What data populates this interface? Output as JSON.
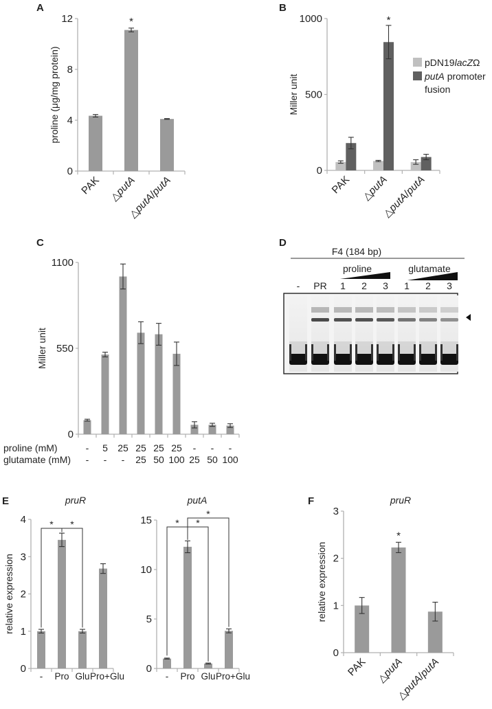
{
  "panels": {
    "A": {
      "letter": "A"
    },
    "B": {
      "letter": "B"
    },
    "C": {
      "letter": "C"
    },
    "D": {
      "letter": "D"
    },
    "E": {
      "letter": "E"
    },
    "F": {
      "letter": "F"
    }
  },
  "gel": {
    "title": "F4 (184 bp)",
    "group_labels": [
      "proline",
      "glutamate"
    ],
    "lane_labels": [
      "-",
      "PR",
      "1",
      "2",
      "3",
      "1",
      "2",
      "3"
    ],
    "shift_band_marker": "arrowhead",
    "shift_band_intensity": [
      0,
      0.9,
      0.85,
      0.85,
      0.8,
      0.6,
      0.5,
      0.4
    ]
  },
  "chart_data": [
    {
      "id": "A",
      "type": "bar",
      "title": "",
      "xlabel": "",
      "ylabel": "proline (μg/mg protein)",
      "categories": [
        "PAK",
        "ΔputA",
        "ΔputA/putA"
      ],
      "values": [
        4.35,
        11.1,
        4.1
      ],
      "errors": [
        0.1,
        0.15,
        0.03
      ],
      "significance": [
        "",
        "*",
        ""
      ],
      "yticks": [
        0,
        4,
        8,
        12
      ],
      "ylim": [
        0,
        12
      ],
      "grid": false,
      "color": "#9a9a9a"
    },
    {
      "id": "B",
      "type": "bar",
      "title": "",
      "xlabel": "",
      "ylabel": "Miller unit",
      "categories": [
        "PAK",
        "ΔputA",
        "ΔputA/putA"
      ],
      "series": [
        {
          "name": "pDN19lacZΩ",
          "values": [
            55,
            62,
            55
          ],
          "errors": [
            8,
            4,
            15
          ],
          "color": "#c0c0c0"
        },
        {
          "name": "putA promoter fusion",
          "values": [
            180,
            845,
            88
          ],
          "errors": [
            38,
            110,
            18
          ],
          "color": "#606060"
        }
      ],
      "significance": [
        "",
        "*",
        ""
      ],
      "yticks": [
        0,
        500,
        1000
      ],
      "ylim": [
        0,
        1000
      ],
      "legend_position": "right",
      "grid": false
    },
    {
      "id": "C",
      "type": "bar",
      "title": "",
      "xlabel": "",
      "ylabel": "Miller unit",
      "row_labels": [
        "proline (mM)",
        "glutamate (mM)"
      ],
      "proline": [
        "-",
        "5",
        "25",
        "25",
        "25",
        "25",
        "-",
        "-",
        "-"
      ],
      "glutamate": [
        "-",
        "-",
        "-",
        "25",
        "50",
        "100",
        "25",
        "50",
        "100"
      ],
      "values": [
        90,
        510,
        1010,
        650,
        640,
        515,
        60,
        60,
        55
      ],
      "errors": [
        6,
        15,
        80,
        70,
        70,
        75,
        20,
        10,
        12
      ],
      "yticks": [
        0,
        550,
        1100
      ],
      "ylim": [
        0,
        1100
      ],
      "grid": false,
      "color": "#9a9a9a"
    },
    {
      "id": "E-pruR",
      "type": "bar",
      "title": "pruR",
      "xlabel": "",
      "ylabel": "relative expression",
      "categories": [
        "-",
        "Pro",
        "Glu",
        "Pro+Glu"
      ],
      "values": [
        1.0,
        3.45,
        1.0,
        2.68
      ],
      "errors": [
        0.05,
        0.18,
        0.05,
        0.13
      ],
      "significance_brackets": [
        {
          "from": "-",
          "to": "Pro",
          "label": "*"
        },
        {
          "from": "Pro",
          "to": "Glu",
          "label": "*"
        }
      ],
      "yticks": [
        0,
        1,
        2,
        3,
        4
      ],
      "ylim": [
        0,
        4
      ],
      "grid": false,
      "color": "#9a9a9a"
    },
    {
      "id": "E-putA",
      "type": "bar",
      "title": "putA",
      "xlabel": "",
      "ylabel": "",
      "categories": [
        "-",
        "Pro",
        "Glu",
        "Pro+Glu"
      ],
      "values": [
        1.0,
        12.3,
        0.5,
        3.8
      ],
      "errors": [
        0.05,
        0.6,
        0.05,
        0.2
      ],
      "significance_brackets": [
        {
          "from": "-",
          "to": "Pro",
          "label": "*"
        },
        {
          "from": "Pro",
          "to": "Glu",
          "label": "*"
        },
        {
          "from": "Pro",
          "to": "Pro+Glu",
          "label": "*"
        }
      ],
      "yticks": [
        0,
        5,
        10,
        15
      ],
      "ylim": [
        0,
        15
      ],
      "grid": false,
      "color": "#9a9a9a"
    },
    {
      "id": "F",
      "type": "bar",
      "title": "pruR",
      "xlabel": "",
      "ylabel": "relative expression",
      "categories": [
        "PAK",
        "ΔputA",
        "ΔputA/putA"
      ],
      "values": [
        1.0,
        2.23,
        0.87
      ],
      "errors": [
        0.17,
        0.11,
        0.2
      ],
      "significance": [
        "",
        "*",
        ""
      ],
      "yticks": [
        0,
        1,
        2,
        3
      ],
      "ylim": [
        0,
        3
      ],
      "grid": false,
      "color": "#9a9a9a"
    }
  ]
}
